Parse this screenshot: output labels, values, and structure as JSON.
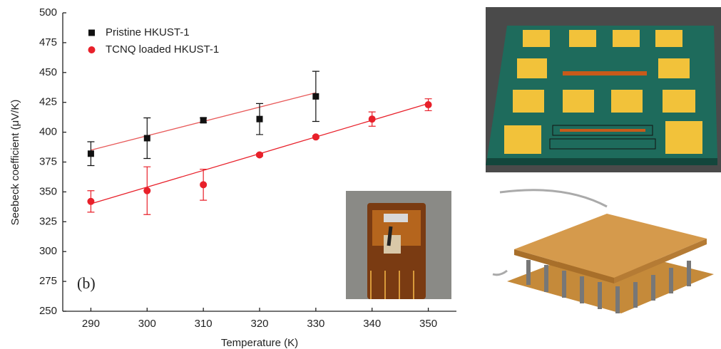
{
  "chart_data": {
    "type": "scatter",
    "x_label": "Temperature (K)",
    "y_label": "Seebeck coefficient (μV/K)",
    "annotation": "(b)",
    "xlim": [
      285,
      355
    ],
    "xticks": [
      290,
      300,
      310,
      320,
      330,
      340,
      350
    ],
    "ylim": [
      250,
      500
    ],
    "yticks": [
      250,
      275,
      300,
      325,
      350,
      375,
      400,
      425,
      450,
      475,
      500
    ],
    "legend": "upper left",
    "series": [
      {
        "name": "Pristine HKUST-1",
        "color": "#111111",
        "marker": "square",
        "x": [
          290,
          300,
          310,
          320,
          330
        ],
        "values": [
          382,
          395,
          410,
          411,
          430
        ],
        "errors": [
          10,
          17,
          2,
          13,
          21
        ],
        "fit": {
          "x": [
            290,
            330
          ],
          "values": [
            385,
            433
          ]
        }
      },
      {
        "name": "TCNQ loaded HKUST-1",
        "color": "#e8202a",
        "marker": "circle",
        "x": [
          290,
          300,
          310,
          320,
          330,
          340,
          350
        ],
        "values": [
          342,
          351,
          356,
          381,
          396,
          411,
          423
        ],
        "errors": [
          9,
          20,
          13,
          1,
          1,
          6,
          5
        ],
        "fit": {
          "x": [
            290,
            350
          ],
          "values": [
            340,
            424
          ]
        }
      }
    ]
  }
}
